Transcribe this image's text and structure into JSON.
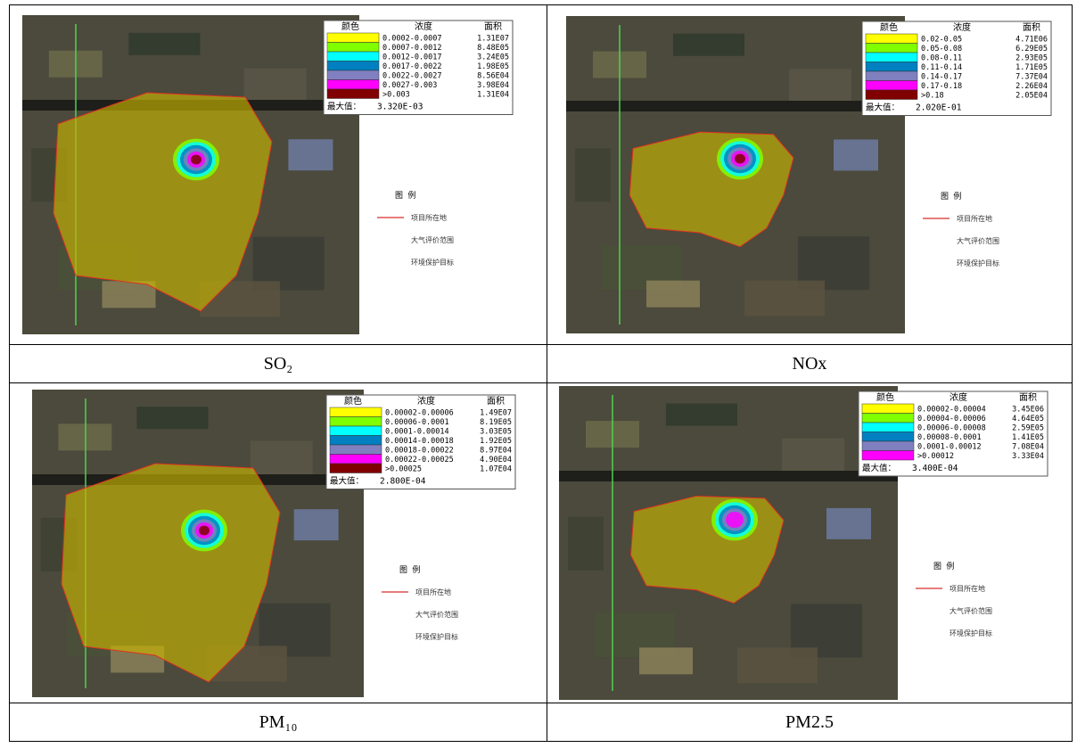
{
  "figure": {
    "map_legend": [
      "图 例",
      "项目所在地",
      "大气评价范围",
      "环境保护目标"
    ],
    "legend_header": [
      "颜色",
      "浓度",
      "面积"
    ],
    "max_label": "最大值：",
    "panels": [
      {
        "caption": "SO₂",
        "max": "3.320E-03",
        "rows": [
          {
            "range": "0.0002-0.0007",
            "area": "1.31E07",
            "color": "#ffff00"
          },
          {
            "range": "0.0007-0.0012",
            "area": "8.48E05",
            "color": "#80ff00"
          },
          {
            "range": "0.0012-0.0017",
            "area": "3.24E05",
            "color": "#00ffff"
          },
          {
            "range": "0.0017-0.0022",
            "area": "1.98E05",
            "color": "#0080c0"
          },
          {
            "range": "0.0022-0.0027",
            "area": "8.56E04",
            "color": "#8080c0"
          },
          {
            "range": "0.0027-0.003",
            "area": "3.98E04",
            "color": "#ff00ff"
          },
          {
            "range": ">0.003",
            "area": "1.31E04",
            "color": "#800000"
          }
        ]
      },
      {
        "caption": "NOx",
        "max": "2.020E-01",
        "rows": [
          {
            "range": "0.02-0.05",
            "area": "4.71E06",
            "color": "#ffff00"
          },
          {
            "range": "0.05-0.08",
            "area": "6.29E05",
            "color": "#80ff00"
          },
          {
            "range": "0.08-0.11",
            "area": "2.93E05",
            "color": "#00ffff"
          },
          {
            "range": "0.11-0.14",
            "area": "1.71E05",
            "color": "#0080c0"
          },
          {
            "range": "0.14-0.17",
            "area": "7.37E04",
            "color": "#8080c0"
          },
          {
            "range": "0.17-0.18",
            "area": "2.26E04",
            "color": "#ff00ff"
          },
          {
            "range": ">0.18",
            "area": "2.05E04",
            "color": "#800000"
          }
        ]
      },
      {
        "caption": "PM₁₀",
        "max": "2.800E-04",
        "rows": [
          {
            "range": "0.00002-0.00006",
            "area": "1.49E07",
            "color": "#ffff00"
          },
          {
            "range": "0.00006-0.0001",
            "area": "8.19E05",
            "color": "#80ff00"
          },
          {
            "range": "0.0001-0.00014",
            "area": "3.03E05",
            "color": "#00ffff"
          },
          {
            "range": "0.00014-0.00018",
            "area": "1.92E05",
            "color": "#0080c0"
          },
          {
            "range": "0.00018-0.00022",
            "area": "8.97E04",
            "color": "#8080c0"
          },
          {
            "range": "0.00022-0.00025",
            "area": "4.90E04",
            "color": "#ff00ff"
          },
          {
            "range": ">0.00025",
            "area": "1.07E04",
            "color": "#800000"
          }
        ]
      },
      {
        "caption": "PM2.5",
        "max": "3.400E-04",
        "rows": [
          {
            "range": "0.00002-0.00004",
            "area": "3.45E06",
            "color": "#ffff00"
          },
          {
            "range": "0.00004-0.00006",
            "area": "4.64E05",
            "color": "#80ff00"
          },
          {
            "range": "0.00006-0.00008",
            "area": "2.59E05",
            "color": "#00ffff"
          },
          {
            "range": "0.00008-0.0001",
            "area": "1.41E05",
            "color": "#0080c0"
          },
          {
            "range": "0.0001-0.00012",
            "area": "7.08E04",
            "color": "#8080c0"
          },
          {
            "range": ">0.00012",
            "area": "3.33E04",
            "color": "#ff00ff"
          }
        ]
      }
    ]
  }
}
